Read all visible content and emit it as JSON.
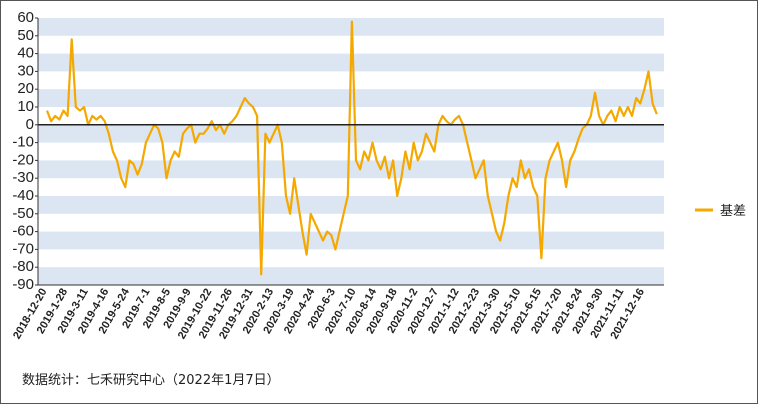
{
  "chart_data": {
    "type": "line",
    "categories": [
      "2018-12-20",
      null,
      null,
      null,
      null,
      "2019-1-28",
      null,
      null,
      null,
      null,
      "2019-3-11",
      null,
      null,
      null,
      null,
      "2019-4-16",
      null,
      null,
      null,
      null,
      "2019-5-24",
      null,
      null,
      null,
      null,
      "2019-7-1",
      null,
      null,
      null,
      null,
      "2019-8-5",
      null,
      null,
      null,
      null,
      "2019-9-9",
      null,
      null,
      null,
      null,
      "2019-10-22",
      null,
      null,
      null,
      null,
      "2019-11-26",
      null,
      null,
      null,
      null,
      "2019-12-31",
      null,
      null,
      null,
      null,
      "2020-2-13",
      null,
      null,
      null,
      null,
      "2020-3-19",
      null,
      null,
      null,
      null,
      "2020-4-24",
      null,
      null,
      null,
      null,
      "2020-6-3",
      null,
      null,
      null,
      null,
      "2020-7-10",
      null,
      null,
      null,
      null,
      "2020-8-14",
      null,
      null,
      null,
      null,
      "2020-9-18",
      null,
      null,
      null,
      null,
      "2020-11-2",
      null,
      null,
      null,
      null,
      "2020-12-7",
      null,
      null,
      null,
      null,
      "2021-1-12",
      null,
      null,
      null,
      null,
      "2021-2-23",
      null,
      null,
      null,
      null,
      "2021-3-30",
      null,
      null,
      null,
      null,
      "2021-5-10",
      null,
      null,
      null,
      null,
      "2021-6-15",
      null,
      null,
      null,
      null,
      "2021-7-20",
      null,
      null,
      null,
      null,
      "2021-8-24",
      null,
      null,
      null,
      null,
      "2021-9-30",
      null,
      null,
      null,
      null,
      "2021-11-11",
      null,
      null,
      null,
      null,
      "2021-12-16",
      null,
      null,
      null
    ],
    "series": [
      {
        "name": "基差",
        "color": "#f5a800",
        "values": [
          8,
          2,
          5,
          3,
          8,
          5,
          48,
          10,
          8,
          10,
          0,
          5,
          3,
          5,
          2,
          -5,
          -15,
          -20,
          -30,
          -35,
          -20,
          -22,
          -28,
          -22,
          -10,
          -5,
          0,
          -2,
          -10,
          -30,
          -20,
          -15,
          -18,
          -5,
          -2,
          0,
          -10,
          -5,
          -5,
          -2,
          2,
          -3,
          0,
          -5,
          0,
          2,
          5,
          10,
          15,
          12,
          10,
          5,
          -84,
          -5,
          -10,
          -5,
          0,
          -10,
          -40,
          -50,
          -30,
          -45,
          -60,
          -73,
          -50,
          -55,
          -60,
          -65,
          -60,
          -62,
          -70,
          -60,
          -50,
          -40,
          58,
          -20,
          -25,
          -15,
          -20,
          -10,
          -20,
          -25,
          -18,
          -30,
          -20,
          -40,
          -30,
          -15,
          -25,
          -10,
          -20,
          -15,
          -5,
          -10,
          -15,
          0,
          5,
          2,
          0,
          3,
          5,
          0,
          -10,
          -20,
          -30,
          -25,
          -20,
          -40,
          -50,
          -60,
          -65,
          -55,
          -40,
          -30,
          -35,
          -20,
          -30,
          -25,
          -35,
          -40,
          -75,
          -30,
          -20,
          -15,
          -10,
          -20,
          -35,
          -20,
          -15,
          -8,
          -2,
          0,
          5,
          18,
          5,
          0,
          5,
          8,
          2,
          10,
          5,
          10,
          5,
          15,
          12,
          20,
          30,
          12,
          6
        ]
      }
    ],
    "ylim": [
      -90,
      60
    ],
    "yticks": [
      -90,
      -80,
      -70,
      -60,
      -50,
      -40,
      -30,
      -20,
      -10,
      0,
      10,
      20,
      30,
      40,
      50,
      60
    ],
    "grid": true,
    "legend": "right",
    "source": "数据统计：七禾研究中心（2022年1月7日）"
  }
}
